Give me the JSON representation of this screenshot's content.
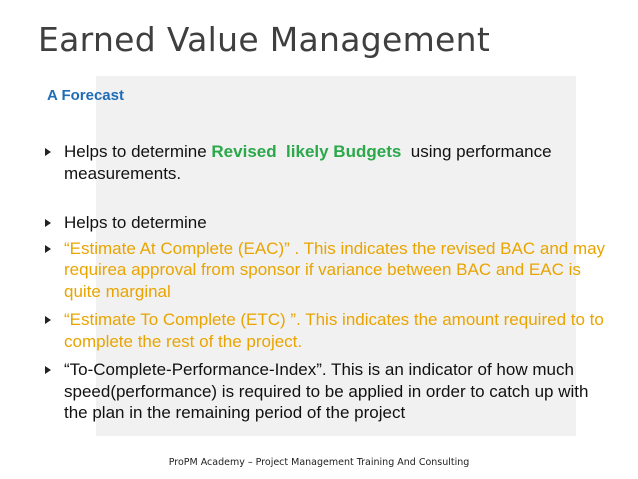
{
  "title": "Earned Value Management",
  "section": "A Forecast",
  "bullets": [
    {
      "parts": [
        {
          "text": "Helps to determine ",
          "color": "#111111",
          "bold": false
        },
        {
          "text": "Revised  likely Budgets",
          "color": "#2aa84a",
          "bold": true
        },
        {
          "text": "  using performance measurements.",
          "color": "#111111",
          "bold": false
        }
      ]
    },
    {
      "parts": [
        {
          "text": "Helps to determine",
          "color": "#111111",
          "bold": false
        }
      ]
    },
    {
      "parts": [
        {
          "text": "“Estimate At Complete (EAC)” . This indicates the revised BAC and may requirea approval from sponsor if variance between BAC and EAC is quite marginal",
          "color": "#e9a400",
          "bold": false
        }
      ]
    },
    {
      "parts": [
        {
          "text": "“Estimate To Complete (ETC) ”. This indicates the amount required to to complete the rest of the project.",
          "color": "#e9a400",
          "bold": false
        }
      ]
    },
    {
      "parts": [
        {
          "text": "“To-Complete-Performance-Index”. This is an indicator of how much speed(performance) is required to be applied in order to catch up with the plan in the remaining period of the project",
          "color": "#111111",
          "bold": false
        }
      ]
    }
  ],
  "footer": "ProPM Academy – Project Management Training And Consulting"
}
